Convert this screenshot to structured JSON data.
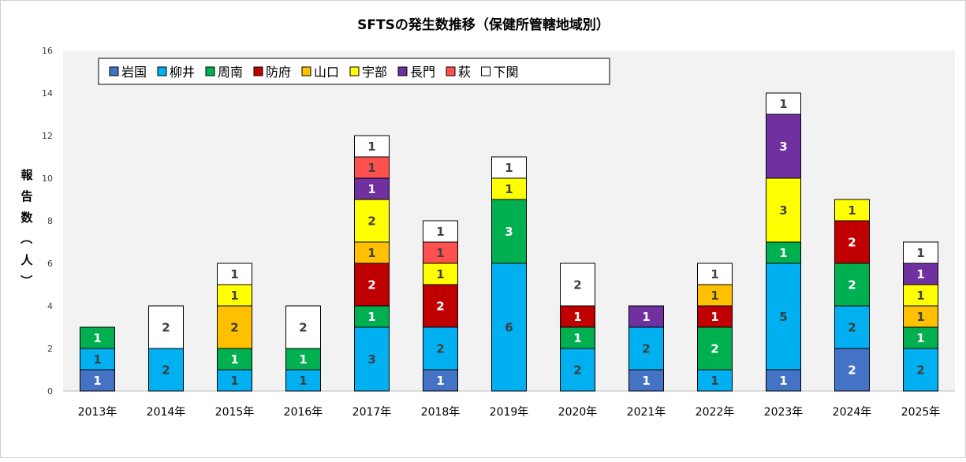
{
  "chart_data": {
    "type": "bar",
    "stacked": true,
    "title": "SFTSの発生数推移（保健所管轄地域別）",
    "xlabel": "",
    "ylabel": "報告数（人）",
    "ylim": [
      0,
      16
    ],
    "yticks": [
      0,
      2,
      4,
      6,
      8,
      10,
      12,
      14,
      16
    ],
    "grid": false,
    "legend_position": "top-left",
    "categories": [
      "2013年",
      "2014年",
      "2015年",
      "2016年",
      "2017年",
      "2018年",
      "2019年",
      "2020年",
      "2021年",
      "2022年",
      "2023年",
      "2024年",
      "2025年"
    ],
    "series": [
      {
        "name": "岩国",
        "color": "#4472c4",
        "label_color": "#ffffff",
        "values": [
          1,
          0,
          0,
          0,
          0,
          1,
          0,
          0,
          1,
          0,
          1,
          2,
          0
        ]
      },
      {
        "name": "柳井",
        "color": "#00b0f0",
        "label_color": "#404040",
        "values": [
          1,
          2,
          1,
          1,
          3,
          2,
          6,
          2,
          2,
          1,
          5,
          2,
          2
        ]
      },
      {
        "name": "周南",
        "color": "#00b050",
        "label_color": "#ffffff",
        "values": [
          1,
          0,
          1,
          1,
          1,
          0,
          3,
          1,
          0,
          2,
          1,
          2,
          1
        ]
      },
      {
        "name": "防府",
        "color": "#c00000",
        "label_color": "#ffffff",
        "values": [
          0,
          0,
          0,
          0,
          2,
          2,
          0,
          1,
          0,
          1,
          0,
          2,
          0
        ]
      },
      {
        "name": "山口",
        "color": "#ffc000",
        "label_color": "#404040",
        "values": [
          0,
          0,
          2,
          0,
          1,
          0,
          0,
          0,
          0,
          1,
          0,
          0,
          1
        ]
      },
      {
        "name": "宇部",
        "color": "#ffff00",
        "label_color": "#404040",
        "values": [
          0,
          0,
          1,
          0,
          2,
          1,
          1,
          0,
          0,
          0,
          3,
          1,
          1
        ]
      },
      {
        "name": "長門",
        "color": "#7030a0",
        "label_color": "#ffffff",
        "values": [
          0,
          0,
          0,
          0,
          1,
          0,
          0,
          0,
          1,
          0,
          3,
          0,
          1
        ]
      },
      {
        "name": "萩",
        "color": "#ff5050",
        "label_color": "#404040",
        "values": [
          0,
          0,
          0,
          0,
          1,
          1,
          0,
          0,
          0,
          0,
          0,
          0,
          0
        ]
      },
      {
        "name": "下関",
        "color": "#ffffff",
        "label_color": "#404040",
        "values": [
          0,
          2,
          1,
          2,
          1,
          1,
          1,
          2,
          0,
          1,
          1,
          0,
          1
        ]
      }
    ]
  }
}
